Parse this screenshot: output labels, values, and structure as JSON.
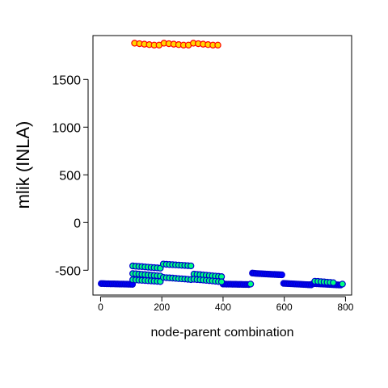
{
  "chart_data": {
    "type": "scatter",
    "title": "",
    "xlabel": "node-parent combination",
    "ylabel": "mlik (INLA)",
    "xlim": [
      -25,
      820
    ],
    "ylim": [
      -760,
      1960
    ],
    "xticks": [
      0,
      200,
      400,
      600,
      800
    ],
    "yticks": [
      -500,
      0,
      500,
      1000,
      1500
    ],
    "grid": false,
    "legend": "none",
    "series": [
      {
        "marker_fill": "#FFD700",
        "marker_stroke": "#FF0000",
        "points": [
          [
            111,
            1880
          ],
          [
            127,
            1875
          ],
          [
            143,
            1870
          ],
          [
            159,
            1865
          ],
          [
            175,
            1860
          ],
          [
            191,
            1860
          ],
          [
            207,
            1880
          ],
          [
            223,
            1875
          ],
          [
            239,
            1870
          ],
          [
            255,
            1865
          ],
          [
            271,
            1860
          ],
          [
            287,
            1860
          ],
          [
            303,
            1880
          ],
          [
            319,
            1875
          ],
          [
            335,
            1870
          ],
          [
            351,
            1865
          ],
          [
            367,
            1860
          ],
          [
            383,
            1860
          ]
        ]
      },
      {
        "marker_fill": "#00FF7F",
        "marker_stroke": "#0000CD",
        "points": [
          [
            105,
            -455
          ],
          [
            115,
            -458
          ],
          [
            125,
            -460
          ],
          [
            135,
            -462
          ],
          [
            145,
            -465
          ],
          [
            155,
            -468
          ],
          [
            165,
            -470
          ],
          [
            175,
            -473
          ],
          [
            185,
            -475
          ],
          [
            195,
            -478
          ],
          [
            105,
            -535
          ],
          [
            115,
            -537
          ],
          [
            125,
            -540
          ],
          [
            135,
            -543
          ],
          [
            145,
            -546
          ],
          [
            155,
            -549
          ],
          [
            165,
            -552
          ],
          [
            175,
            -555
          ],
          [
            185,
            -558
          ],
          [
            195,
            -560
          ],
          [
            105,
            -600
          ],
          [
            115,
            -602
          ],
          [
            125,
            -604
          ],
          [
            135,
            -606
          ],
          [
            145,
            -608
          ],
          [
            155,
            -610
          ],
          [
            165,
            -612
          ],
          [
            175,
            -614
          ],
          [
            185,
            -616
          ],
          [
            195,
            -618
          ],
          [
            205,
            -435
          ],
          [
            215,
            -438
          ],
          [
            225,
            -440
          ],
          [
            235,
            -442
          ],
          [
            245,
            -444
          ],
          [
            255,
            -446
          ],
          [
            265,
            -448
          ],
          [
            275,
            -450
          ],
          [
            285,
            -452
          ],
          [
            295,
            -454
          ],
          [
            205,
            -575
          ],
          [
            215,
            -578
          ],
          [
            225,
            -580
          ],
          [
            235,
            -582
          ],
          [
            245,
            -585
          ],
          [
            255,
            -588
          ],
          [
            265,
            -590
          ],
          [
            275,
            -592
          ],
          [
            285,
            -595
          ],
          [
            295,
            -598
          ],
          [
            305,
            -540
          ],
          [
            315,
            -543
          ],
          [
            325,
            -546
          ],
          [
            335,
            -549
          ],
          [
            345,
            -552
          ],
          [
            355,
            -555
          ],
          [
            365,
            -558
          ],
          [
            375,
            -561
          ],
          [
            385,
            -564
          ],
          [
            395,
            -567
          ],
          [
            305,
            -595
          ],
          [
            315,
            -598
          ],
          [
            325,
            -600
          ],
          [
            335,
            -603
          ],
          [
            345,
            -606
          ],
          [
            355,
            -609
          ],
          [
            365,
            -612
          ],
          [
            375,
            -615
          ],
          [
            385,
            -618
          ],
          [
            395,
            -621
          ],
          [
            490,
            -645
          ],
          [
            700,
            -615
          ],
          [
            710,
            -617
          ],
          [
            720,
            -620
          ],
          [
            730,
            -622
          ],
          [
            740,
            -625
          ],
          [
            750,
            -627
          ],
          [
            760,
            -630
          ],
          [
            790,
            -645
          ]
        ]
      },
      {
        "marker_fill": "#0000FF",
        "marker_stroke": "#0000CD",
        "points": [
          [
            2,
            -640
          ],
          [
            8,
            -640
          ],
          [
            14,
            -641
          ],
          [
            20,
            -642
          ],
          [
            26,
            -642
          ],
          [
            32,
            -643
          ],
          [
            38,
            -643
          ],
          [
            44,
            -643
          ],
          [
            50,
            -644
          ],
          [
            56,
            -644
          ],
          [
            62,
            -645
          ],
          [
            68,
            -645
          ],
          [
            74,
            -645
          ],
          [
            80,
            -646
          ],
          [
            86,
            -646
          ],
          [
            92,
            -647
          ],
          [
            98,
            -647
          ],
          [
            104,
            -648
          ],
          [
            400,
            -645
          ],
          [
            406,
            -645
          ],
          [
            412,
            -646
          ],
          [
            418,
            -646
          ],
          [
            424,
            -646
          ],
          [
            430,
            -647
          ],
          [
            436,
            -647
          ],
          [
            442,
            -647
          ],
          [
            448,
            -648
          ],
          [
            454,
            -648
          ],
          [
            460,
            -648
          ],
          [
            466,
            -649
          ],
          [
            472,
            -649
          ],
          [
            478,
            -649
          ],
          [
            484,
            -650
          ],
          [
            496,
            -530
          ],
          [
            502,
            -532
          ],
          [
            508,
            -534
          ],
          [
            514,
            -535
          ],
          [
            520,
            -536
          ],
          [
            526,
            -537
          ],
          [
            532,
            -538
          ],
          [
            538,
            -539
          ],
          [
            544,
            -540
          ],
          [
            550,
            -541
          ],
          [
            556,
            -542
          ],
          [
            562,
            -543
          ],
          [
            568,
            -544
          ],
          [
            574,
            -545
          ],
          [
            580,
            -546
          ],
          [
            586,
            -547
          ],
          [
            592,
            -548
          ],
          [
            598,
            -638
          ],
          [
            604,
            -639
          ],
          [
            610,
            -640
          ],
          [
            616,
            -641
          ],
          [
            622,
            -642
          ],
          [
            628,
            -643
          ],
          [
            634,
            -644
          ],
          [
            640,
            -645
          ],
          [
            646,
            -646
          ],
          [
            652,
            -647
          ],
          [
            658,
            -648
          ],
          [
            664,
            -649
          ],
          [
            670,
            -650
          ],
          [
            676,
            -651
          ],
          [
            682,
            -652
          ],
          [
            688,
            -653
          ],
          [
            694,
            -640
          ],
          [
            700,
            -641
          ],
          [
            706,
            -642
          ],
          [
            712,
            -643
          ],
          [
            718,
            -644
          ],
          [
            724,
            -645
          ],
          [
            730,
            -646
          ],
          [
            736,
            -647
          ],
          [
            742,
            -648
          ],
          [
            748,
            -649
          ],
          [
            754,
            -650
          ],
          [
            760,
            -651
          ],
          [
            766,
            -652
          ],
          [
            772,
            -653
          ],
          [
            778,
            -654
          ],
          [
            784,
            -655
          ]
        ]
      }
    ]
  }
}
